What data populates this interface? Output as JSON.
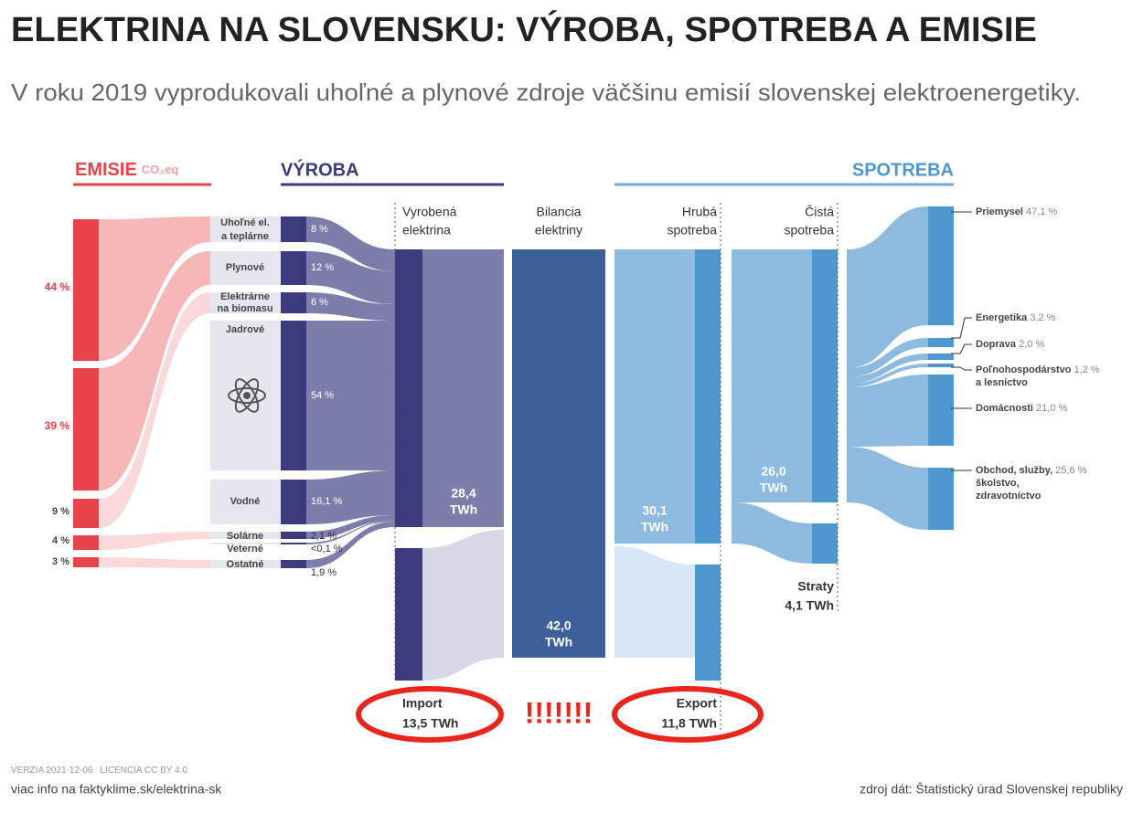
{
  "header": {
    "title": "ELEKTRINA NA SLOVENSKU: VÝROBA, SPOTREBA A EMISIE",
    "subtitle": "V roku 2019 vyprodukovali uhoľné a plynové zdroje väčšinu emisií slovenskej elektroenergetiky."
  },
  "sections": {
    "emissions": "EMISIE",
    "emissions_unit": "CO₂eq",
    "production": "VÝROBA",
    "consumption": "SPOTREBA"
  },
  "emissions": [
    "44 %",
    "39 %",
    "9 %",
    "4 %",
    "3 %"
  ],
  "sources": [
    {
      "label": [
        "Uhoľné el.",
        "a teplárne"
      ],
      "share": "8 %"
    },
    {
      "label": [
        "Plynové"
      ],
      "share": "12 %"
    },
    {
      "label": [
        "Elektrárne",
        "na biomasu"
      ],
      "share": "6 %"
    },
    {
      "label": [
        "Jadrové"
      ],
      "share": "54 %"
    },
    {
      "label": [
        "Vodné"
      ],
      "share": "16,1 %"
    },
    {
      "label": [
        "Solárne"
      ],
      "share": "2,1 %"
    },
    {
      "label": [
        "Veterné"
      ],
      "share": "<0,1 %"
    },
    {
      "label": [
        "Ostatné"
      ],
      "share": "1,9 %"
    }
  ],
  "columns": {
    "produced": {
      "label": [
        "Vyrobená",
        "elektrina"
      ],
      "value": [
        "28,4",
        "TWh"
      ]
    },
    "balance": {
      "label": [
        "Bilancia",
        "elektriny"
      ],
      "value": [
        "42,0",
        "TWh"
      ]
    },
    "gross": {
      "label": [
        "Hrubá",
        "spotreba"
      ],
      "value": [
        "30,1",
        "TWh"
      ]
    },
    "net": {
      "label": [
        "Čistá",
        "spotreba"
      ],
      "value": [
        "26,0",
        "TWh"
      ]
    },
    "losses": {
      "label": "Straty",
      "value": "4,1 TWh"
    },
    "import": {
      "label": "Import",
      "value": "13,5 TWh"
    },
    "export": {
      "label": "Export",
      "value": "11,8 TWh"
    }
  },
  "alert": "!!!!!!!",
  "sectors": [
    {
      "label": [
        "Priemysel"
      ],
      "share": "47,1 %"
    },
    {
      "label": [
        "Energetika"
      ],
      "share": "3,2 %"
    },
    {
      "label": [
        "Doprava"
      ],
      "share": "2,0 %"
    },
    {
      "label": [
        "Poľnohospodárstvo",
        "a lesníctvo"
      ],
      "share": "1,2 %"
    },
    {
      "label": [
        "Domácnosti"
      ],
      "share": "21,0 %"
    },
    {
      "label": [
        "Obchod, služby,",
        "školstvo,",
        "zdravotníctvo"
      ],
      "share": "25,6 %"
    }
  ],
  "footer": {
    "version": "VERZIA 2021-12-06",
    "license": "LICENCIA CC BY 4.0",
    "more_info": "viac info na faktyklime.sk/elektrina-sk",
    "source": "zdroj dát: Štatistický úrad Slovenskej republiky"
  }
}
